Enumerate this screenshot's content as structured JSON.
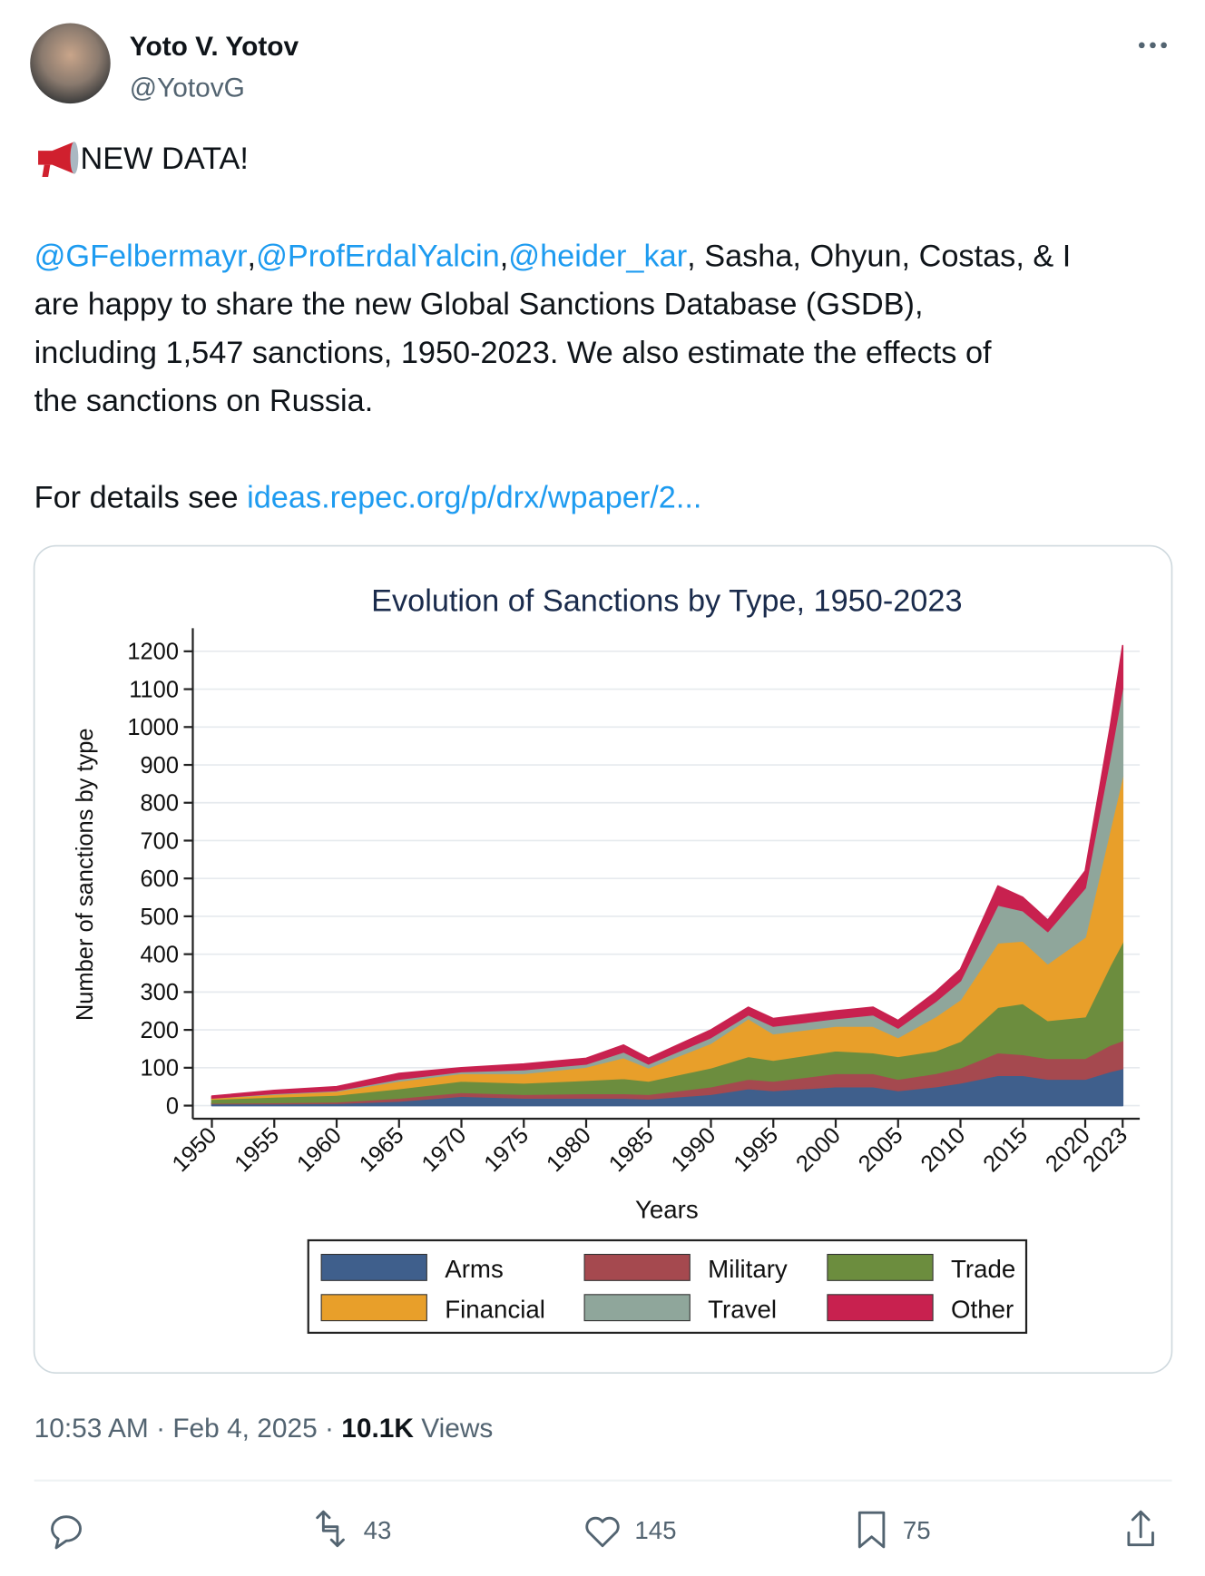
{
  "tweet": {
    "author_name": "Yoto V. Yotov",
    "handle": "@YotovG",
    "headline": "NEW DATA!",
    "body": [
      [
        {
          "text": "@GFelbermayr",
          "link": true
        },
        {
          "text": ",",
          "link": false
        },
        {
          "text": "@ProfErdalYalcin",
          "link": true
        },
        {
          "text": ",",
          "link": false
        },
        {
          "text": "@heider_kar",
          "link": true
        },
        {
          "text": ", Sasha, Ohyun, Costas, & I",
          "link": false
        }
      ],
      [
        {
          "text": "are happy to share the new Global Sanctions Database (GSDB),",
          "link": false
        }
      ],
      [
        {
          "text": "including 1,547 sanctions, 1950-2023. We also estimate the effects of",
          "link": false
        }
      ],
      [
        {
          "text": "the sanctions on Russia.",
          "link": false
        }
      ],
      [],
      [
        {
          "text": "For details see ",
          "link": false
        },
        {
          "text": "ideas.repec.org/p/drx/wpaper/2...",
          "link": true
        }
      ]
    ],
    "timestamp": "10:53 AM · Feb 4, 2025 · ",
    "views": "10.1K",
    "views_label": " Views",
    "retweets": 43,
    "likes": 145,
    "bookmarks": 75
  },
  "chart_data": {
    "type": "stacked_area",
    "title": "Evolution of Sanctions by Type, 1950-2023",
    "x_label": "Years",
    "y_label": "Number of sanctions by type",
    "x": [
      1950,
      1955,
      1960,
      1965,
      1970,
      1975,
      1980,
      1983,
      1985,
      1990,
      1993,
      1995,
      2000,
      2003,
      2005,
      2008,
      2010,
      2013,
      2015,
      2017,
      2020,
      2022,
      2023
    ],
    "series": [
      {
        "name": "Arms",
        "color": "#3f5f8c",
        "values": [
          5,
          5,
          6,
          12,
          25,
          20,
          20,
          20,
          18,
          30,
          45,
          40,
          50,
          50,
          40,
          50,
          60,
          80,
          80,
          70,
          70,
          90,
          98
        ]
      },
      {
        "name": "Military",
        "color": "#a5494f",
        "values": [
          2,
          3,
          4,
          8,
          10,
          10,
          12,
          12,
          12,
          20,
          25,
          25,
          35,
          35,
          30,
          35,
          40,
          60,
          55,
          55,
          55,
          70,
          74
        ]
      },
      {
        "name": "Trade",
        "color": "#6c8d3e",
        "values": [
          10,
          15,
          18,
          25,
          30,
          30,
          35,
          40,
          35,
          50,
          60,
          55,
          60,
          55,
          60,
          60,
          70,
          120,
          135,
          100,
          110,
          210,
          260
        ]
      },
      {
        "name": "Financial",
        "color": "#e89f2a",
        "values": [
          3,
          7,
          10,
          20,
          20,
          25,
          35,
          55,
          35,
          65,
          100,
          70,
          65,
          70,
          50,
          90,
          110,
          170,
          165,
          150,
          210,
          360,
          438
        ]
      },
      {
        "name": "Travel",
        "color": "#8fa69b",
        "values": [
          0,
          2,
          2,
          5,
          5,
          10,
          8,
          15,
          10,
          15,
          10,
          20,
          20,
          30,
          25,
          40,
          50,
          100,
          80,
          85,
          130,
          190,
          233
        ]
      },
      {
        "name": "Other",
        "color": "#c8214f",
        "values": [
          5,
          8,
          10,
          15,
          10,
          15,
          15,
          18,
          15,
          20,
          20,
          20,
          20,
          20,
          20,
          25,
          30,
          50,
          35,
          30,
          45,
          80,
          112
        ]
      }
    ],
    "xlim": [
      1950,
      2023
    ],
    "xticks": [
      1950,
      1955,
      1960,
      1965,
      1970,
      1975,
      1980,
      1985,
      1990,
      1995,
      2000,
      2005,
      2010,
      2015,
      2020,
      2023
    ],
    "ylim": [
      0,
      1200
    ],
    "yticks": [
      0,
      100,
      200,
      300,
      400,
      500,
      600,
      700,
      800,
      900,
      1000,
      1100,
      1200
    ],
    "grid": true,
    "legend": "bottom"
  }
}
